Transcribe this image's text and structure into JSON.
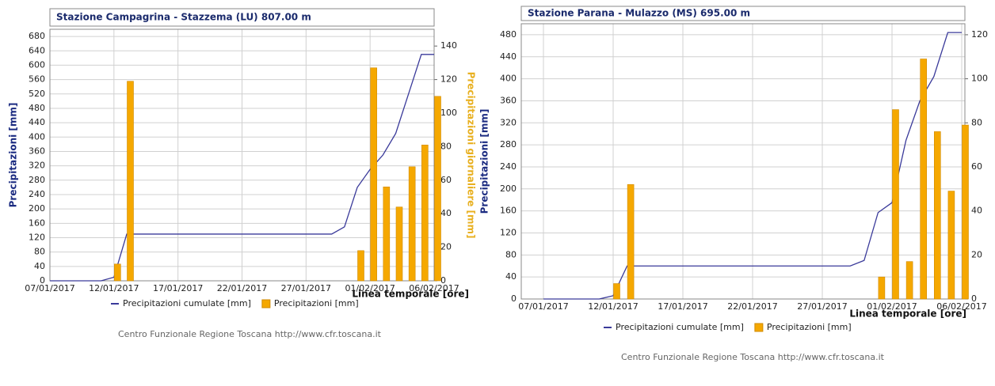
{
  "chart_data": [
    {
      "type": "bar",
      "title": "Stazione Campagrina - Stazzema (LU) 807.00 m",
      "y_label": "Precipitazioni [mm]",
      "y2_label": "Precipitazioni giornaliere [mm]",
      "x_label": "Linea temporale [ore]",
      "source": "Centro Funzionale Regione Toscana http://www.cfr.toscana.it",
      "categories": [
        "07/01/2017",
        null,
        null,
        null,
        null,
        "12/01/2017",
        null,
        null,
        null,
        null,
        "17/01/2017",
        null,
        null,
        null,
        null,
        "22/01/2017",
        null,
        null,
        null,
        null,
        "27/01/2017",
        null,
        null,
        null,
        null,
        "01/02/2017",
        null,
        null,
        null,
        null,
        "06/02/2017"
      ],
      "series": [
        {
          "name": "Precipitazioni cumulate [mm]",
          "type": "line",
          "color": "#3a3a9a",
          "values": [
            0,
            0,
            0,
            0,
            0,
            10,
            130,
            130,
            130,
            130,
            130,
            130,
            130,
            130,
            130,
            130,
            130,
            130,
            130,
            130,
            130,
            130,
            130,
            150,
            260,
            310,
            350,
            410,
            520,
            630,
            630
          ]
        },
        {
          "name": "Precipitazioni [mm]",
          "type": "bar",
          "axis": "y2",
          "color": "#f5a800",
          "values": [
            0,
            0,
            0,
            0,
            0,
            10,
            119,
            0,
            0,
            0,
            0,
            0,
            0,
            0,
            0,
            0,
            0,
            0,
            0,
            0,
            0,
            0,
            0,
            0,
            18,
            127,
            56,
            44,
            68,
            81,
            110
          ]
        }
      ],
      "ylim": [
        0,
        700
      ],
      "yticks": [
        0,
        40,
        80,
        120,
        160,
        200,
        240,
        280,
        320,
        360,
        400,
        440,
        480,
        520,
        560,
        600,
        640,
        680
      ],
      "y2lim": [
        0,
        150
      ],
      "y2ticks": [
        0,
        20,
        40,
        60,
        80,
        100,
        120,
        140
      ],
      "grid": true
    },
    {
      "type": "bar",
      "title": "Stazione Parana - Mulazzo (MS) 695.00 m",
      "y_label": "Precipitazioni [mm]",
      "y2_label": "Precipitazioni giornaliere [mm]",
      "x_label": "Linea temporale [ore]",
      "source": "Centro Funzionale Regione Toscana http://www.cfr.toscana.it",
      "categories": [
        "07/01/2017",
        null,
        null,
        null,
        null,
        "12/01/2017",
        null,
        null,
        null,
        null,
        "17/01/2017",
        null,
        null,
        null,
        null,
        "22/01/2017",
        null,
        null,
        null,
        null,
        "27/01/2017",
        null,
        null,
        null,
        null,
        "01/02/2017",
        null,
        null,
        null,
        null,
        "06/02/2017"
      ],
      "series": [
        {
          "name": "Precipitazioni cumulate [mm]",
          "type": "line",
          "color": "#3a3a9a",
          "values": [
            0,
            0,
            0,
            0,
            0,
            6,
            60,
            60,
            60,
            60,
            60,
            60,
            60,
            60,
            60,
            60,
            60,
            60,
            60,
            60,
            60,
            60,
            60,
            70,
            157,
            175,
            288,
            360,
            404,
            484,
            484
          ]
        },
        {
          "name": "Precipitazioni [mm]",
          "type": "bar",
          "axis": "y2",
          "color": "#f5a800",
          "values": [
            0,
            0,
            0,
            0,
            0,
            7,
            52,
            0,
            0,
            0,
            0,
            0,
            0,
            0,
            0,
            0,
            0,
            0,
            0,
            0,
            0,
            0,
            0,
            0,
            10,
            86,
            17,
            109,
            76,
            49,
            79
          ]
        }
      ],
      "ylim": [
        0,
        500
      ],
      "yticks": [
        0,
        40,
        80,
        120,
        160,
        200,
        240,
        280,
        320,
        360,
        400,
        440,
        480
      ],
      "y2lim": [
        0,
        125
      ],
      "y2ticks": [
        0,
        20,
        40,
        60,
        80,
        100,
        120
      ],
      "grid": true
    }
  ]
}
